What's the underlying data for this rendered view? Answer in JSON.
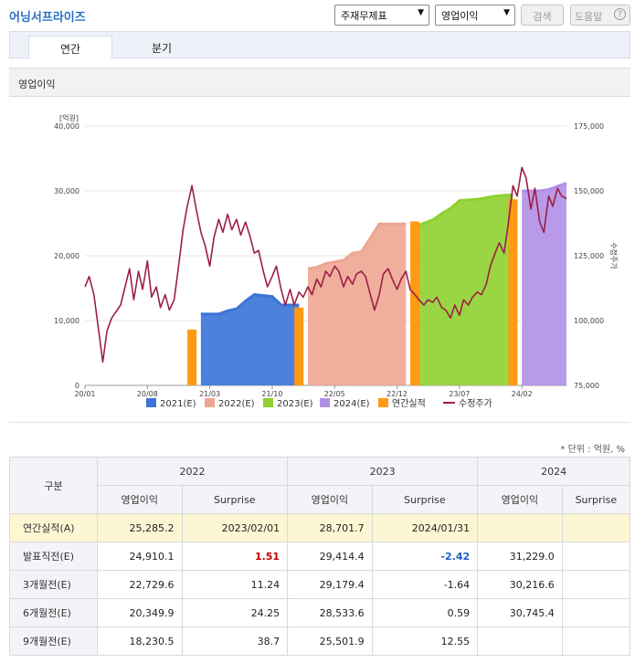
{
  "app": {
    "title": "어닝서프라이즈",
    "selectors": [
      {
        "value": "주재무제표"
      },
      {
        "value": "영업이익"
      }
    ],
    "search_button": "검색",
    "help_button": "도움말",
    "help_icon": "help-circle-icon"
  },
  "tabs": [
    {
      "label": "연간",
      "active": true
    },
    {
      "label": "분기",
      "active": false
    }
  ],
  "section_title": "영업이익",
  "unit_note": "* 단위 : 억원, %",
  "chart_data": {
    "type": "area",
    "left_axis": {
      "unit_label": "[억원]",
      "ylim": [
        0,
        40000
      ],
      "ticks": [
        "40,000",
        "30,000",
        "20,000",
        "10,000",
        "0"
      ]
    },
    "right_axis": {
      "label": "수정주가",
      "ylim": [
        75000,
        175000
      ],
      "ticks": [
        "175,000",
        "150,000",
        "125,000",
        "100,000",
        "75,000"
      ]
    },
    "x_ticks": [
      "20/01",
      "20/08",
      "21/03",
      "21/10",
      "22/05",
      "22/12",
      "23/07",
      "24/02"
    ],
    "x_range": [
      "2020-01",
      "2024-07"
    ],
    "colors": {
      "2021(E)": "#3b73d8",
      "2022(E)": "#eea691",
      "2023(E)": "#8fd02f",
      "2024(E)": "#b18fe6",
      "연간실적": "#ff9a12",
      "수정주가": "#9c1f45"
    },
    "estimate_series": [
      {
        "name": "2021(E)",
        "points": [
          [
            "2021-02",
            11000
          ],
          [
            "2021-04",
            11000
          ],
          [
            "2021-05",
            11500
          ],
          [
            "2021-06",
            11800
          ],
          [
            "2021-07",
            13000
          ],
          [
            "2021-08",
            14000
          ],
          [
            "2021-10",
            13700
          ],
          [
            "2021-11",
            12400
          ],
          [
            "2022-01",
            12400
          ]
        ]
      },
      {
        "name": "2022(E)",
        "points": [
          [
            "2022-02",
            18000
          ],
          [
            "2022-03",
            18200
          ],
          [
            "2022-04",
            18800
          ],
          [
            "2022-06",
            19300
          ],
          [
            "2022-07",
            20400
          ],
          [
            "2022-08",
            20600
          ],
          [
            "2022-09",
            22700
          ],
          [
            "2022-10",
            24900
          ],
          [
            "2023-01",
            24900
          ]
        ]
      },
      {
        "name": "2023(E)",
        "points": [
          [
            "2023-02",
            24500
          ],
          [
            "2023-04",
            25500
          ],
          [
            "2023-05",
            26500
          ],
          [
            "2023-06",
            27300
          ],
          [
            "2023-07",
            28500
          ],
          [
            "2023-09",
            28700
          ],
          [
            "2023-11",
            29200
          ],
          [
            "2024-01",
            29400
          ]
        ]
      },
      {
        "name": "2024(E)",
        "points": [
          [
            "2024-02",
            30000
          ],
          [
            "2024-04",
            30000
          ],
          [
            "2024-05",
            30200
          ],
          [
            "2024-07",
            31200
          ]
        ]
      }
    ],
    "annual_actual": [
      {
        "year": "2020",
        "release": "2021-01",
        "value": 8600
      },
      {
        "year": "2021",
        "release": "2022-01",
        "value": 12000
      },
      {
        "year": "2022",
        "release": "2023-02",
        "value": 25285.2
      },
      {
        "year": "2023",
        "release": "2024-01",
        "value": 28701.7
      }
    ],
    "price_series": [
      [
        "2020-01",
        113000
      ],
      [
        "2020-01-15",
        117000
      ],
      [
        "2020-02",
        110000
      ],
      [
        "2020-02-15",
        98000
      ],
      [
        "2020-03",
        84000
      ],
      [
        "2020-03-15",
        96000
      ],
      [
        "2020-04",
        101000
      ],
      [
        "2020-05",
        106000
      ],
      [
        "2020-06",
        120000
      ],
      [
        "2020-06-15",
        108000
      ],
      [
        "2020-07",
        119000
      ],
      [
        "2020-07-15",
        112000
      ],
      [
        "2020-08",
        123000
      ],
      [
        "2020-08-15",
        109000
      ],
      [
        "2020-09",
        113000
      ],
      [
        "2020-09-15",
        105000
      ],
      [
        "2020-10",
        110000
      ],
      [
        "2020-10-15",
        104000
      ],
      [
        "2020-11",
        108000
      ],
      [
        "2020-11-15",
        120000
      ],
      [
        "2020-12",
        135000
      ],
      [
        "2020-12-15",
        144000
      ],
      [
        "2021-01",
        152000
      ],
      [
        "2021-01-15",
        143000
      ],
      [
        "2021-02",
        134000
      ],
      [
        "2021-02-15",
        129000
      ],
      [
        "2021-03",
        121000
      ],
      [
        "2021-03-15",
        132000
      ],
      [
        "2021-04",
        139000
      ],
      [
        "2021-04-15",
        134000
      ],
      [
        "2021-05",
        141000
      ],
      [
        "2021-05-15",
        135000
      ],
      [
        "2021-06",
        139000
      ],
      [
        "2021-06-15",
        133000
      ],
      [
        "2021-07",
        138000
      ],
      [
        "2021-07-15",
        133000
      ],
      [
        "2021-08",
        126000
      ],
      [
        "2021-08-15",
        127000
      ],
      [
        "2021-09",
        119000
      ],
      [
        "2021-09-15",
        113000
      ],
      [
        "2021-10",
        117000
      ],
      [
        "2021-10-15",
        121000
      ],
      [
        "2021-11",
        112000
      ],
      [
        "2021-11-15",
        106000
      ],
      [
        "2021-12",
        112000
      ],
      [
        "2021-12-15",
        106000
      ],
      [
        "2022-01",
        111000
      ],
      [
        "2022-01-15",
        109000
      ],
      [
        "2022-02",
        113000
      ],
      [
        "2022-02-15",
        110000
      ],
      [
        "2022-03",
        116000
      ],
      [
        "2022-03-15",
        113000
      ],
      [
        "2022-04",
        119000
      ],
      [
        "2022-04-15",
        117000
      ],
      [
        "2022-05",
        121000
      ],
      [
        "2022-05-15",
        119000
      ],
      [
        "2022-06",
        113000
      ],
      [
        "2022-06-15",
        117000
      ],
      [
        "2022-07",
        114000
      ],
      [
        "2022-07-15",
        118000
      ],
      [
        "2022-08",
        119000
      ],
      [
        "2022-08-15",
        117000
      ],
      [
        "2022-09",
        110000
      ],
      [
        "2022-09-15",
        104000
      ],
      [
        "2022-10",
        110000
      ],
      [
        "2022-10-15",
        118000
      ],
      [
        "2022-11",
        120000
      ],
      [
        "2022-11-15",
        116000
      ],
      [
        "2022-12",
        112000
      ],
      [
        "2022-12-15",
        116000
      ],
      [
        "2023-01",
        119000
      ],
      [
        "2023-01-15",
        112000
      ],
      [
        "2023-02",
        110000
      ],
      [
        "2023-02-15",
        108000
      ],
      [
        "2023-03",
        106000
      ],
      [
        "2023-03-15",
        108000
      ],
      [
        "2023-04",
        107000
      ],
      [
        "2023-04-15",
        109000
      ],
      [
        "2023-05",
        105000
      ],
      [
        "2023-05-15",
        104000
      ],
      [
        "2023-06",
        101000
      ],
      [
        "2023-06-15",
        106000
      ],
      [
        "2023-07",
        102000
      ],
      [
        "2023-07-15",
        108000
      ],
      [
        "2023-08",
        106000
      ],
      [
        "2023-08-15",
        109000
      ],
      [
        "2023-09",
        111000
      ],
      [
        "2023-09-15",
        110000
      ],
      [
        "2023-10",
        114000
      ],
      [
        "2023-10-15",
        121000
      ],
      [
        "2023-11",
        126000
      ],
      [
        "2023-11-15",
        130000
      ],
      [
        "2023-12",
        126000
      ],
      [
        "2023-12-15",
        137000
      ],
      [
        "2024-01",
        152000
      ],
      [
        "2024-01-15",
        148000
      ],
      [
        "2024-02",
        159000
      ],
      [
        "2024-02-15",
        155000
      ],
      [
        "2024-03",
        143000
      ],
      [
        "2024-03-15",
        151000
      ],
      [
        "2024-04",
        138000
      ],
      [
        "2024-04-15",
        134000
      ],
      [
        "2024-05",
        148000
      ],
      [
        "2024-05-15",
        144000
      ],
      [
        "2024-06",
        151000
      ],
      [
        "2024-06-15",
        148000
      ],
      [
        "2024-07",
        147000
      ]
    ],
    "legend": [
      {
        "label": "2021(E)",
        "kind": "box"
      },
      {
        "label": "2022(E)",
        "kind": "box"
      },
      {
        "label": "2023(E)",
        "kind": "box"
      },
      {
        "label": "2024(E)",
        "kind": "box"
      },
      {
        "label": "연간실적",
        "kind": "box"
      },
      {
        "label": "수정주가",
        "kind": "line"
      }
    ],
    "legend_position": "bottom"
  },
  "table": {
    "corner_label": "구분",
    "years": [
      "2022",
      "2023",
      "2024"
    ],
    "sub_headers": [
      "영업이익",
      "Surprise"
    ],
    "rows": [
      {
        "label": "연간실적(A)",
        "cells": [
          "25,285.2",
          "2023/02/01",
          "28,701.7",
          "2024/01/31",
          "",
          ""
        ],
        "actual": true
      },
      {
        "label": "발표직전(E)",
        "cells": [
          "24,910.1",
          "1.51",
          "29,414.4",
          "-2.42",
          "31,229.0",
          ""
        ],
        "styles": [
          "",
          "pos",
          "",
          "neg",
          "",
          ""
        ]
      },
      {
        "label": "3개월전(E)",
        "cells": [
          "22,729.6",
          "11.24",
          "29,179.4",
          "-1.64",
          "30,216.6",
          ""
        ]
      },
      {
        "label": "6개월전(E)",
        "cells": [
          "20,349.9",
          "24.25",
          "28,533.6",
          "0.59",
          "30,745.4",
          ""
        ]
      },
      {
        "label": "9개월전(E)",
        "cells": [
          "18,230.5",
          "38.7",
          "25,501.9",
          "12.55",
          "",
          ""
        ]
      }
    ]
  }
}
